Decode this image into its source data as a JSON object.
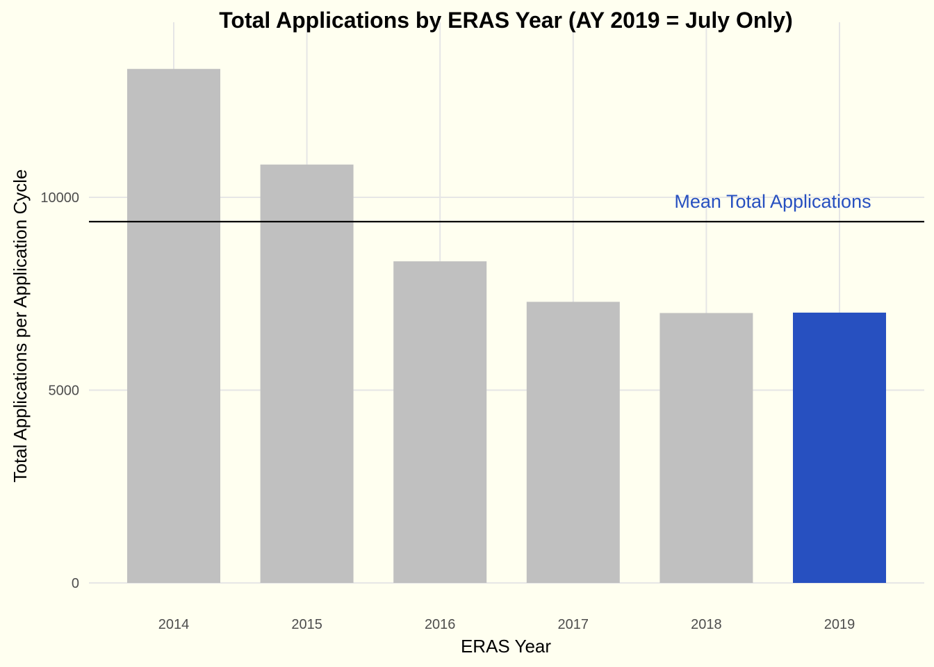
{
  "chart_data": {
    "type": "bar",
    "title": "Total Applications by ERAS Year (AY 2019 = July Only)",
    "xlabel": "ERAS Year",
    "ylabel": "Total Applications per Application Cycle",
    "categories": [
      "2014",
      "2015",
      "2016",
      "2017",
      "2018",
      "2019"
    ],
    "values": [
      13330,
      10850,
      8340,
      7290,
      7000,
      7010
    ],
    "highlight_category": "2019",
    "yticks": [
      0,
      5000,
      10000
    ],
    "ylim": [
      0,
      14000
    ],
    "grid": true,
    "mean_line": {
      "value": 9370,
      "label": "Mean Total Applications"
    },
    "colors": {
      "background": "#FFFFF0",
      "bar_default": "#C0C0C0",
      "bar_highlight": "#2750C0",
      "mean_line": "#000000",
      "annotation": "#2750C0",
      "grid": "#E6E6E6"
    }
  }
}
